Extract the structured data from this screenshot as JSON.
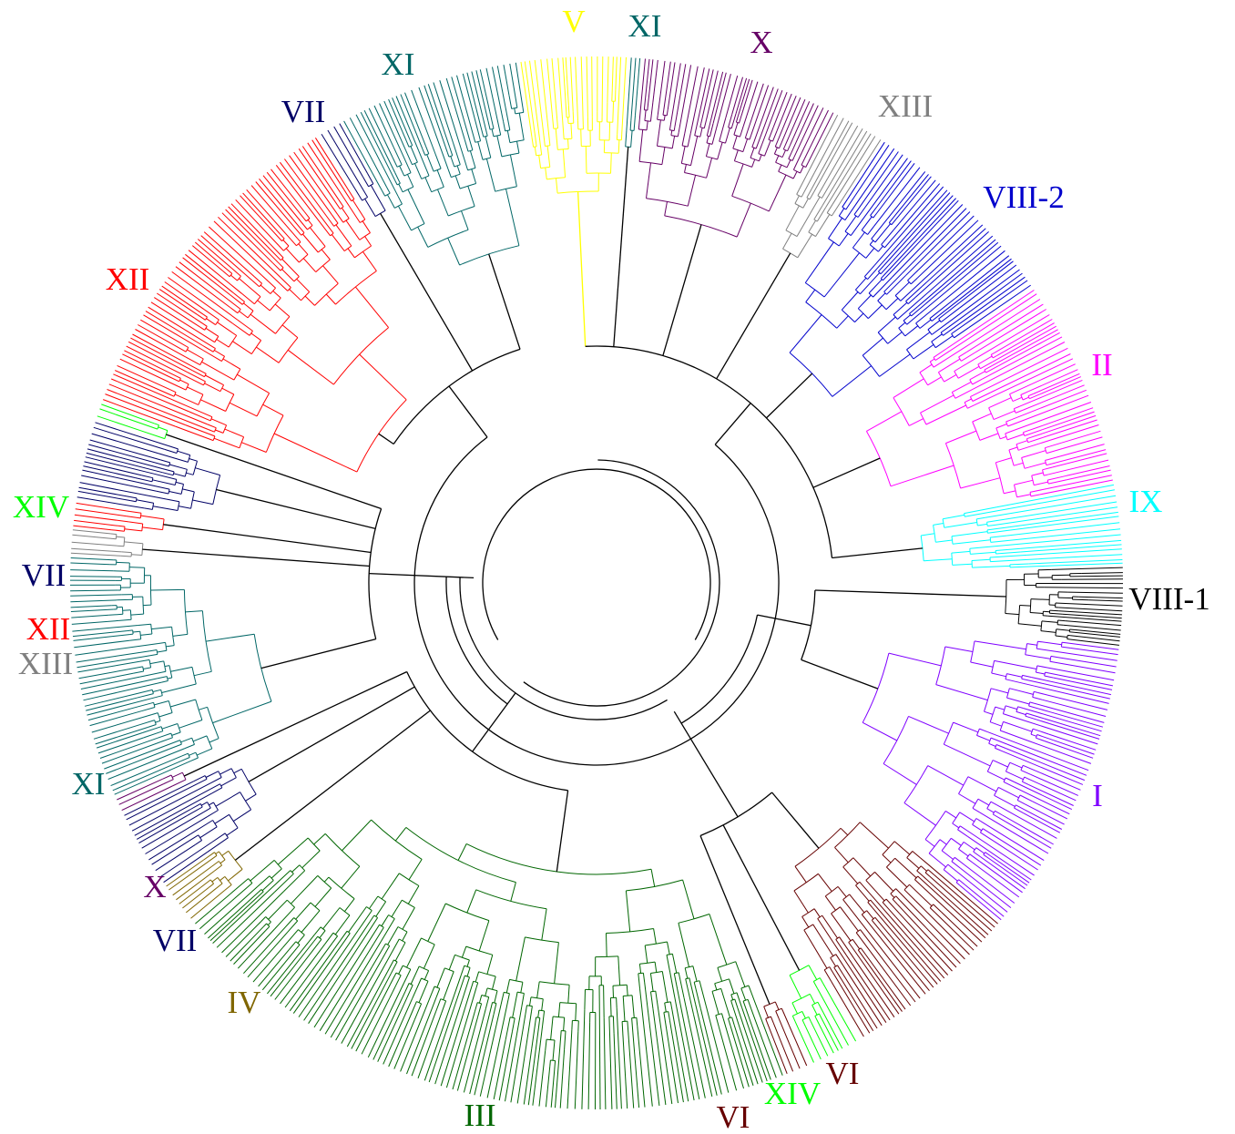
{
  "diagram": {
    "type": "circular-dendrogram",
    "clades": [
      {
        "label": "V",
        "color": "#ffff00"
      },
      {
        "label": "XI",
        "color": "#006666"
      },
      {
        "label": "X",
        "color": "#660066"
      },
      {
        "label": "XIII",
        "color": "#808080"
      },
      {
        "label": "VIII-2",
        "color": "#0000cc"
      },
      {
        "label": "II",
        "color": "#ff00ff"
      },
      {
        "label": "IX",
        "color": "#00ffff"
      },
      {
        "label": "VIII-1",
        "color": "#000000"
      },
      {
        "label": "I",
        "color": "#7f00ff"
      },
      {
        "label": "VI",
        "color": "#660000"
      },
      {
        "label": "XIV",
        "color": "#00ff00"
      },
      {
        "label": "VI",
        "color": "#660000"
      },
      {
        "label": "III",
        "color": "#006600"
      },
      {
        "label": "IV",
        "color": "#806600"
      },
      {
        "label": "VII",
        "color": "#000066"
      },
      {
        "label": "X",
        "color": "#660066"
      },
      {
        "label": "XI",
        "color": "#006666"
      },
      {
        "label": "XIII",
        "color": "#808080"
      },
      {
        "label": "XII",
        "color": "#ff0000"
      },
      {
        "label": "VII",
        "color": "#000066"
      },
      {
        "label": "XIV",
        "color": "#00ff00"
      },
      {
        "label": "XII",
        "color": "#ff0000"
      },
      {
        "label": "VII",
        "color": "#000066"
      },
      {
        "label": "XI",
        "color": "#006666"
      }
    ]
  }
}
